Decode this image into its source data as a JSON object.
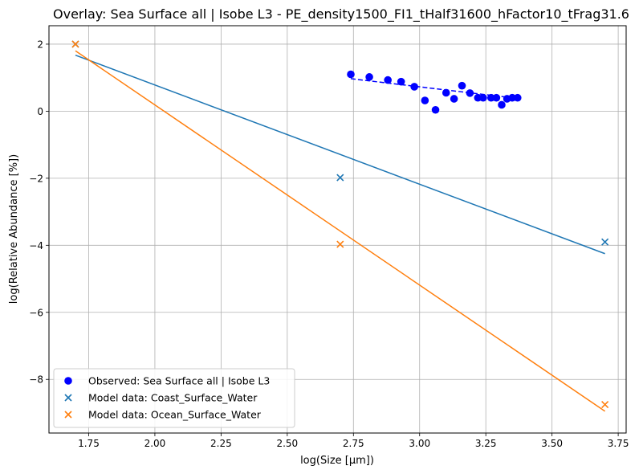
{
  "chart_data": {
    "type": "scatter",
    "title": "Overlay: Sea Surface all | Isobe L3 - PE_density1500_FI1_tHalf31600_hFactor10_tFrag31.6",
    "xlabel": "log(Size [µm])",
    "ylabel": "log(Relative Abundance [%])",
    "xlim": [
      1.6,
      3.78
    ],
    "ylim": [
      -9.6,
      2.55
    ],
    "xticks": [
      "1.75",
      "2.00",
      "2.25",
      "2.50",
      "2.75",
      "3.00",
      "3.25",
      "3.50",
      "3.75"
    ],
    "yticks": [
      "−8",
      "−6",
      "−4",
      "−2",
      "0",
      "2"
    ],
    "xtick_values": [
      1.75,
      2.0,
      2.25,
      2.5,
      2.75,
      3.0,
      3.25,
      3.5,
      3.75
    ],
    "ytick_values": [
      -8,
      -6,
      -4,
      -2,
      0,
      2
    ],
    "grid": true,
    "legend_position": "lower-left",
    "series": [
      {
        "name": "Observed: Sea Surface all | Isobe L3",
        "kind": "scatter",
        "marker": "circle",
        "color": "#0000ff",
        "x": [
          2.74,
          2.81,
          2.88,
          2.93,
          2.98,
          3.02,
          3.06,
          3.1,
          3.13,
          3.16,
          3.19,
          3.22,
          3.24,
          3.27,
          3.29,
          3.31,
          3.33,
          3.35,
          3.37
        ],
        "y": [
          1.1,
          1.02,
          0.93,
          0.88,
          0.73,
          0.32,
          0.04,
          0.55,
          0.37,
          0.76,
          0.54,
          0.4,
          0.4,
          0.4,
          0.4,
          0.19,
          0.37,
          0.4,
          0.4
        ]
      },
      {
        "name": "Model data: Coast_Surface_Water",
        "kind": "scatter",
        "marker": "x",
        "color": "#1f77b4",
        "x": [
          1.7,
          2.7,
          3.7
        ],
        "y": [
          2.0,
          -1.98,
          -3.9
        ]
      },
      {
        "name": "Model data: Ocean_Surface_Water",
        "kind": "scatter",
        "marker": "x",
        "color": "#ff7f0e",
        "x": [
          1.7,
          2.7,
          3.7
        ],
        "y": [
          2.0,
          -3.97,
          -8.75
        ]
      }
    ],
    "fit_lines": [
      {
        "color": "#0000ff",
        "dashed": true,
        "x": [
          2.74,
          3.37
        ],
        "y": [
          0.97,
          0.38
        ]
      },
      {
        "color": "#1f77b4",
        "dashed": false,
        "x": [
          1.7,
          3.7
        ],
        "y": [
          1.67,
          -4.25
        ]
      },
      {
        "color": "#ff7f0e",
        "dashed": false,
        "x": [
          1.7,
          3.7
        ],
        "y": [
          1.8,
          -8.95
        ]
      }
    ]
  }
}
